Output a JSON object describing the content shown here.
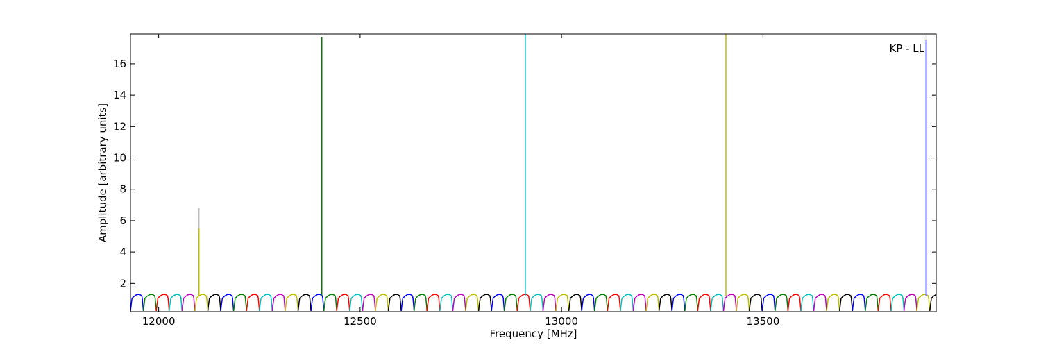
{
  "chart_data": {
    "type": "line",
    "annotation": "KP - LL",
    "xlabel": "Frequency [MHz]",
    "ylabel": "Amplitude [arbitrary units]",
    "xlim": [
      11930,
      13930
    ],
    "ylim": [
      0.2,
      17.9
    ],
    "xticks": [
      12000,
      12500,
      13000,
      13500
    ],
    "yticks": [
      2,
      4,
      6,
      8,
      10,
      12,
      14,
      16
    ],
    "grid": false,
    "legend": "none",
    "band_width_mhz": 32,
    "band_start_mhz": 11930,
    "band_colors": [
      "#0000ff",
      "#008000",
      "#ff0000",
      "#00bfbf",
      "#bf00bf",
      "#bfbf00",
      "#000000"
    ],
    "baseline_level": 1.2,
    "baseline_dip": 0.25,
    "spikes": [
      {
        "x": 12100,
        "y": 6.8,
        "color": "#bbbbbb"
      },
      {
        "x": 12100,
        "y": 5.5,
        "color": "#bfbf00"
      },
      {
        "x": 12405,
        "y": 17.7,
        "color": "#008000"
      },
      {
        "x": 12910,
        "y": 17.9,
        "color": "#00bfbf"
      },
      {
        "x": 13408,
        "y": 17.9,
        "color": "#bfbf00"
      },
      {
        "x": 13905,
        "y": 17.8,
        "color": "#bbbbbb"
      },
      {
        "x": 13905,
        "y": 17.5,
        "color": "#0000ff"
      }
    ]
  }
}
